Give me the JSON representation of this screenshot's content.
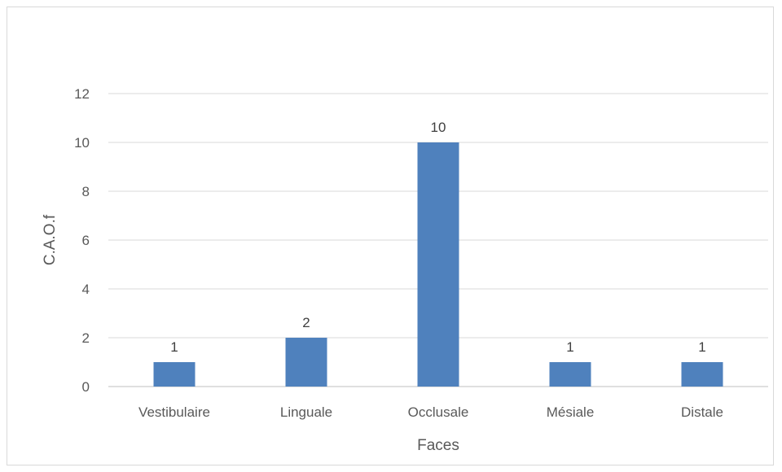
{
  "chart_data": {
    "type": "bar",
    "categories": [
      "Vestibulaire",
      "Linguale",
      "Occlusale",
      "Mésiale",
      "Distale"
    ],
    "values": [
      1,
      2,
      10,
      1,
      1
    ],
    "title": "",
    "xlabel": "Faces",
    "ylabel": "C.A.O.f",
    "ylim": [
      0,
      12
    ],
    "yticks": [
      0,
      2,
      4,
      6,
      8,
      10,
      12
    ],
    "grid": true,
    "legend": "none",
    "data_labels": true,
    "bar_color": "#4f81bd",
    "gridline_color": "#d9d9d9"
  }
}
